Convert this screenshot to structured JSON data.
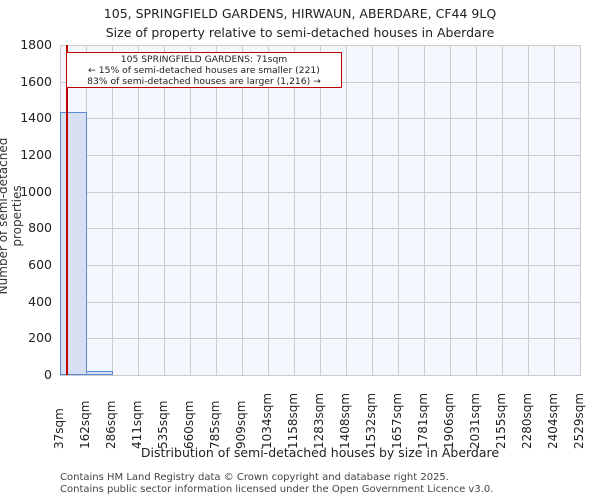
{
  "header": {
    "title": "105, SPRINGFIELD GARDENS, HIRWAUN, ABERDARE, CF44 9LQ",
    "subtitle": "Size of property relative to semi-detached houses in Aberdare"
  },
  "annotation": {
    "line1": "105 SPRINGFIELD GARDENS: 71sqm",
    "line2": "← 15% of semi-detached houses are smaller (221)",
    "line3": "83% of semi-detached houses are larger (1,216) →"
  },
  "axes": {
    "ylabel": "Number of semi-detached properties",
    "xlabel": "Distribution of semi-detached houses by size in Aberdare",
    "yticks": [
      "0",
      "200",
      "400",
      "600",
      "800",
      "1000",
      "1200",
      "1400",
      "1600",
      "1800"
    ],
    "xticks": [
      "37sqm",
      "162sqm",
      "286sqm",
      "411sqm",
      "535sqm",
      "660sqm",
      "785sqm",
      "909sqm",
      "1034sqm",
      "1158sqm",
      "1283sqm",
      "1408sqm",
      "1532sqm",
      "1657sqm",
      "1781sqm",
      "1906sqm",
      "2031sqm",
      "2155sqm",
      "2280sqm",
      "2404sqm",
      "2529sqm"
    ]
  },
  "footer": {
    "line1": "Contains HM Land Registry data © Crown copyright and database right 2025.",
    "line2": "Contains public sector information licensed under the Open Government Licence v3.0."
  },
  "colors": {
    "bar_fill": "#d6e0f2",
    "bar_edge": "#5a8ad1",
    "marker_line": "#c00000",
    "plot_bg": "#f3f6fd"
  },
  "chart_data": {
    "type": "bar",
    "title": "105, SPRINGFIELD GARDENS, HIRWAUN, ABERDARE, CF44 9LQ",
    "subtitle": "Size of property relative to semi-detached houses in Aberdare",
    "xlabel": "Distribution of semi-detached houses by size in Aberdare",
    "ylabel": "Number of semi-detached properties",
    "categories": [
      "37-162sqm",
      "162-286sqm",
      "286-411sqm",
      "411-535sqm",
      "535-660sqm",
      "660-785sqm",
      "785-909sqm",
      "909-1034sqm",
      "1034-1158sqm",
      "1158-1283sqm",
      "1283-1408sqm",
      "1408-1532sqm",
      "1532-1657sqm",
      "1657-1781sqm",
      "1781-1906sqm",
      "1906-2031sqm",
      "2031-2155sqm",
      "2155-2280sqm",
      "2280-2404sqm",
      "2404-2529sqm"
    ],
    "bin_edges": [
      37,
      162,
      286,
      411,
      535,
      660,
      785,
      909,
      1034,
      1158,
      1283,
      1408,
      1532,
      1657,
      1781,
      1906,
      2031,
      2155,
      2280,
      2404,
      2529
    ],
    "values": [
      1437,
      20,
      0,
      0,
      0,
      0,
      0,
      0,
      0,
      0,
      0,
      0,
      0,
      0,
      0,
      0,
      0,
      0,
      0,
      0
    ],
    "ylim": [
      0,
      1800
    ],
    "yticks": [
      0,
      200,
      400,
      600,
      800,
      1000,
      1200,
      1400,
      1600,
      1800
    ],
    "grid": true,
    "marker": {
      "x": 71,
      "label": "105 SPRINGFIELD GARDENS: 71sqm",
      "smaller_pct": 15,
      "smaller_count": 221,
      "larger_pct": 83,
      "larger_count": 1216
    }
  }
}
